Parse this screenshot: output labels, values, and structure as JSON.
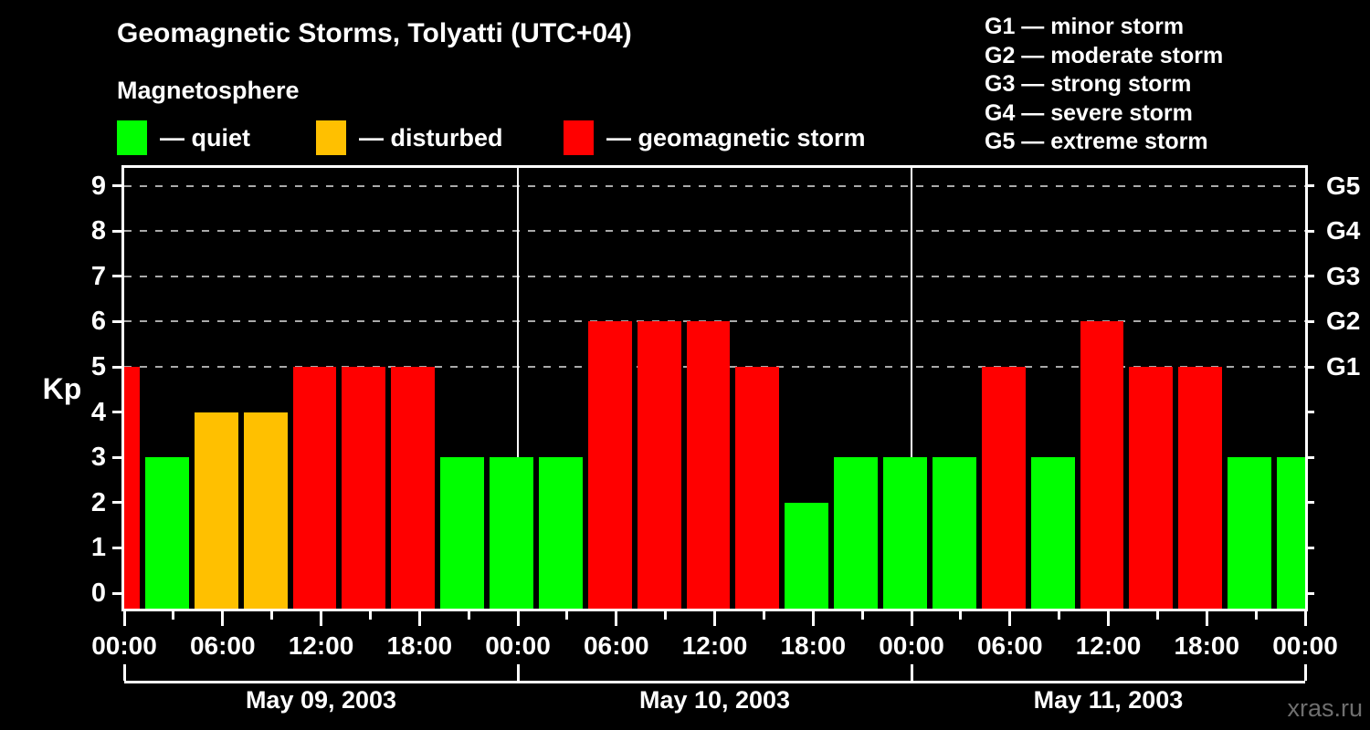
{
  "header": {
    "title": "Geomagnetic Storms, Tolyatti (UTC+04)",
    "subtitle": "Magnetosphere",
    "legend": [
      {
        "status": "quiet",
        "color": "#00ff00",
        "label": "— quiet"
      },
      {
        "status": "disturbed",
        "color": "#ffc000",
        "label": "— disturbed"
      },
      {
        "status": "storm",
        "color": "#ff0000",
        "label": "— geomagnetic storm"
      }
    ],
    "g_scale_legend": [
      "G1 — minor storm",
      "G2 — moderate storm",
      "G3 — strong storm",
      "G4 — severe storm",
      "G5 — extreme storm"
    ]
  },
  "chart_data": {
    "type": "bar",
    "title": "Geomagnetic Storms, Tolyatti (UTC+04)",
    "ylabel": "Kp",
    "ylim": [
      -0.4,
      9.4
    ],
    "y_ticks": [
      0,
      1,
      2,
      3,
      4,
      5,
      6,
      7,
      8,
      9
    ],
    "gridlines_at": [
      5,
      6,
      7,
      8,
      9
    ],
    "grid_style": "dashed",
    "right_axis_labels": [
      {
        "kp": 5,
        "label": "G1"
      },
      {
        "kp": 6,
        "label": "G2"
      },
      {
        "kp": 7,
        "label": "G3"
      },
      {
        "kp": 8,
        "label": "G4"
      },
      {
        "kp": 9,
        "label": "G5"
      }
    ],
    "x_tick_labels": [
      "00:00",
      "06:00",
      "12:00",
      "18:00",
      "00:00",
      "06:00",
      "12:00",
      "18:00",
      "00:00",
      "06:00",
      "12:00",
      "18:00",
      "00:00"
    ],
    "x_minor_step_hours": 3,
    "x_major_step_hours": 6,
    "days": [
      "May 09, 2003",
      "May 10, 2003",
      "May 11, 2003"
    ],
    "hours_per_day": 24,
    "bar_interval_hours": 3,
    "bars": [
      {
        "kp": 5,
        "status": "storm",
        "clipped": "left"
      },
      {
        "kp": 3,
        "status": "quiet"
      },
      {
        "kp": 4,
        "status": "disturbed"
      },
      {
        "kp": 4,
        "status": "disturbed"
      },
      {
        "kp": 5,
        "status": "storm"
      },
      {
        "kp": 5,
        "status": "storm"
      },
      {
        "kp": 5,
        "status": "storm"
      },
      {
        "kp": 3,
        "status": "quiet"
      },
      {
        "kp": 3,
        "status": "quiet"
      },
      {
        "kp": 3,
        "status": "quiet"
      },
      {
        "kp": 6,
        "status": "storm"
      },
      {
        "kp": 6,
        "status": "storm"
      },
      {
        "kp": 6,
        "status": "storm"
      },
      {
        "kp": 5,
        "status": "storm"
      },
      {
        "kp": 2,
        "status": "quiet"
      },
      {
        "kp": 3,
        "status": "quiet"
      },
      {
        "kp": 3,
        "status": "quiet"
      },
      {
        "kp": 3,
        "status": "quiet"
      },
      {
        "kp": 5,
        "status": "storm"
      },
      {
        "kp": 3,
        "status": "quiet"
      },
      {
        "kp": 6,
        "status": "storm"
      },
      {
        "kp": 5,
        "status": "storm"
      },
      {
        "kp": 5,
        "status": "storm"
      },
      {
        "kp": 3,
        "status": "quiet"
      },
      {
        "kp": 3,
        "status": "quiet",
        "clipped": "right"
      }
    ],
    "colors": {
      "quiet": "#00ff00",
      "disturbed": "#ffc000",
      "storm": "#ff0000"
    }
  },
  "footer": {
    "watermark": "xras.ru"
  }
}
